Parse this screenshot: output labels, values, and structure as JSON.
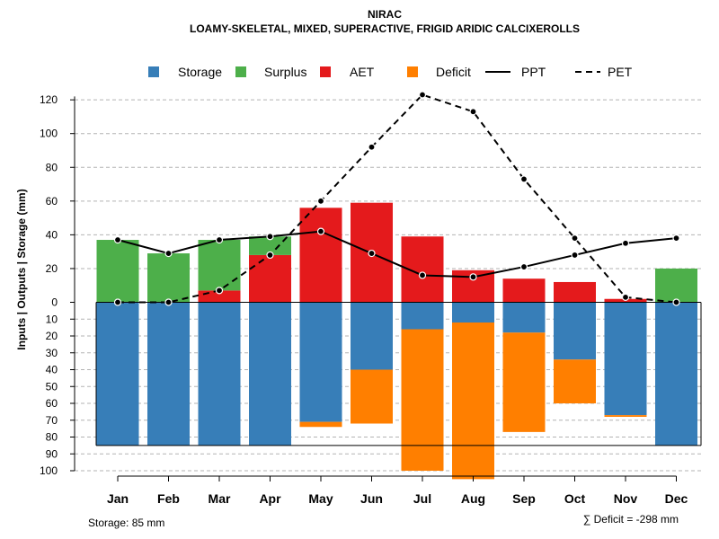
{
  "chart_data": {
    "type": "bar",
    "title": "NIRAC",
    "subtitle": "LOAMY-SKELETAL, MIXED, SUPERACTIVE, FRIGID ARIDIC CALCIXEROLLS",
    "ylabel": "Inputs | Outputs | Storage    (mm)",
    "categories": [
      "Jan",
      "Feb",
      "Mar",
      "Apr",
      "May",
      "Jun",
      "Jul",
      "Aug",
      "Sep",
      "Oct",
      "Nov",
      "Dec"
    ],
    "upper_yticks": [
      0,
      20,
      40,
      60,
      80,
      100,
      120
    ],
    "lower_yticks": [
      10,
      20,
      30,
      40,
      50,
      60,
      70,
      80,
      90,
      100
    ],
    "storage_capacity": 85,
    "series": [
      {
        "name": "Storage",
        "color": "#377EB8",
        "position": "below-zero",
        "values": [
          85,
          85,
          85,
          85,
          71,
          40,
          16,
          12,
          18,
          34,
          67,
          85
        ]
      },
      {
        "name": "Deficit",
        "color": "#FF7F00",
        "position": "below-storage",
        "values": [
          0,
          0,
          0,
          0,
          3,
          32,
          84,
          93,
          59,
          26,
          1,
          0
        ]
      },
      {
        "name": "AET",
        "color": "#E41A1C",
        "position": "above-zero",
        "values": [
          0,
          0,
          7,
          28,
          56,
          59,
          39,
          19,
          14,
          12,
          2,
          0
        ]
      },
      {
        "name": "Surplus",
        "color": "#4DAF4A",
        "position": "above-aet",
        "values": [
          37,
          29,
          30,
          11,
          0,
          0,
          0,
          0,
          0,
          0,
          0,
          20
        ]
      },
      {
        "name": "PPT",
        "color": "#000000",
        "style": "solid",
        "values": [
          37,
          29,
          37,
          39,
          42,
          29,
          16,
          15,
          21,
          28,
          35,
          38
        ]
      },
      {
        "name": "PET",
        "color": "#000000",
        "style": "dashed",
        "values": [
          0,
          0,
          7,
          28,
          60,
          92,
          123,
          113,
          73,
          38,
          3,
          0
        ]
      }
    ],
    "legend": {
      "position": "top",
      "entries": [
        "Storage",
        "Surplus",
        "AET",
        "Deficit",
        "PPT",
        "PET"
      ]
    },
    "footer_left": "Storage: 85 mm",
    "footer_right": "∑ Deficit = -298 mm"
  }
}
